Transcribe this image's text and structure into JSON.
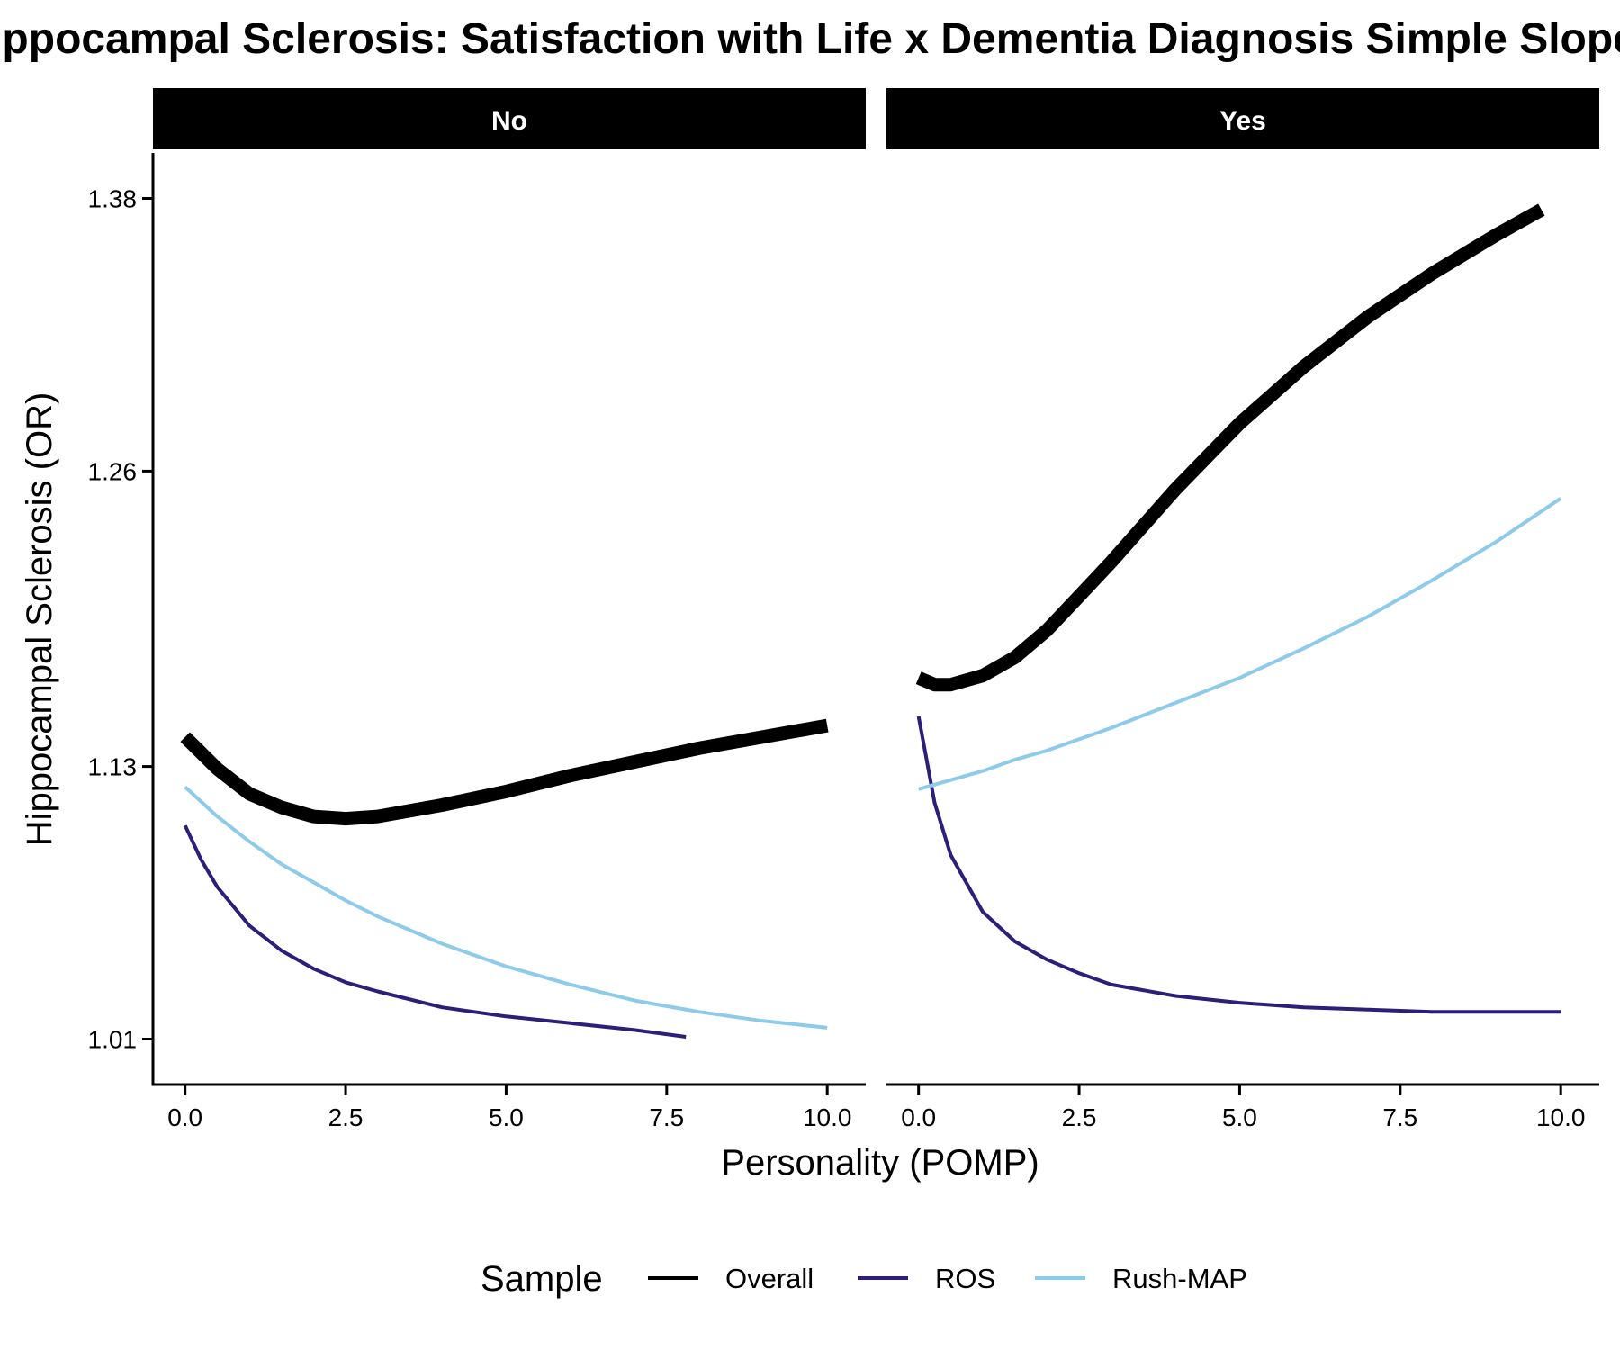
{
  "chart_data": {
    "type": "line",
    "title": "Hippocampal Sclerosis: Satisfaction with Life x Dementia Diagnosis Simple Slopes",
    "xlabel": "Personality (POMP)",
    "ylabel": "Hippocampal Sclerosis (OR)",
    "xlim": [
      -0.5,
      10.6
    ],
    "ylim": [
      0.99,
      1.4
    ],
    "x_ticks": [
      0.0,
      2.5,
      5.0,
      7.5,
      10.0
    ],
    "x_tick_labels": [
      "0.0",
      "2.5",
      "5.0",
      "7.5",
      "10.0"
    ],
    "y_ticks": [
      1.01,
      1.13,
      1.26,
      1.38
    ],
    "y_tick_labels": [
      "1.01",
      "1.13",
      "1.26",
      "1.38"
    ],
    "grid": false,
    "legend": {
      "title": "Sample",
      "position": "bottom",
      "entries": [
        "Overall",
        "ROS",
        "Rush-MAP"
      ]
    },
    "series_styles": [
      {
        "name": "Overall",
        "color": "#000000",
        "width": 15
      },
      {
        "name": "ROS",
        "color": "#2e1e7a",
        "width": 4
      },
      {
        "name": "Rush-MAP",
        "color": "#8ecbeb",
        "width": 4
      }
    ],
    "facets": [
      {
        "label": "No",
        "series": [
          {
            "name": "Overall",
            "x": [
              0,
              0.5,
              1,
              1.5,
              2,
              2.5,
              3,
              4,
              5,
              6,
              7,
              8,
              9,
              10
            ],
            "y": [
              1.143,
              1.129,
              1.118,
              1.112,
              1.108,
              1.107,
              1.108,
              1.113,
              1.119,
              1.126,
              1.132,
              1.138,
              1.143,
              1.148
            ]
          },
          {
            "name": "ROS",
            "x": [
              0,
              0.25,
              0.5,
              1,
              1.5,
              2,
              2.5,
              3,
              4,
              5,
              6,
              7,
              7.8
            ],
            "y": [
              1.104,
              1.089,
              1.077,
              1.06,
              1.049,
              1.041,
              1.035,
              1.031,
              1.024,
              1.02,
              1.017,
              1.014,
              1.011
            ]
          },
          {
            "name": "Rush-MAP",
            "x": [
              0,
              0.5,
              1,
              1.5,
              2,
              2.5,
              3,
              4,
              5,
              6,
              7,
              8,
              9,
              10
            ],
            "y": [
              1.121,
              1.108,
              1.097,
              1.087,
              1.079,
              1.071,
              1.064,
              1.052,
              1.042,
              1.034,
              1.027,
              1.022,
              1.018,
              1.015
            ]
          }
        ]
      },
      {
        "label": "Yes",
        "series": [
          {
            "name": "Overall",
            "x": [
              0,
              0.25,
              0.5,
              1,
              1.5,
              2,
              2.5,
              3,
              4,
              5,
              6,
              7,
              8,
              9,
              9.7
            ],
            "y": [
              1.169,
              1.166,
              1.166,
              1.17,
              1.178,
              1.19,
              1.205,
              1.22,
              1.252,
              1.281,
              1.306,
              1.328,
              1.347,
              1.364,
              1.375
            ]
          },
          {
            "name": "ROS",
            "x": [
              0,
              0.25,
              0.5,
              1,
              1.5,
              2,
              2.5,
              3,
              4,
              5,
              6,
              7,
              8,
              9,
              10
            ],
            "y": [
              1.152,
              1.114,
              1.091,
              1.066,
              1.053,
              1.045,
              1.039,
              1.034,
              1.029,
              1.026,
              1.024,
              1.023,
              1.022,
              1.022,
              1.022
            ]
          },
          {
            "name": "Rush-MAP",
            "x": [
              0,
              0.5,
              1,
              1.5,
              2,
              2.5,
              3,
              4,
              5,
              6,
              7,
              8,
              9,
              10
            ],
            "y": [
              1.12,
              1.124,
              1.128,
              1.133,
              1.137,
              1.142,
              1.147,
              1.158,
              1.169,
              1.182,
              1.196,
              1.212,
              1.229,
              1.248
            ]
          }
        ]
      }
    ]
  }
}
